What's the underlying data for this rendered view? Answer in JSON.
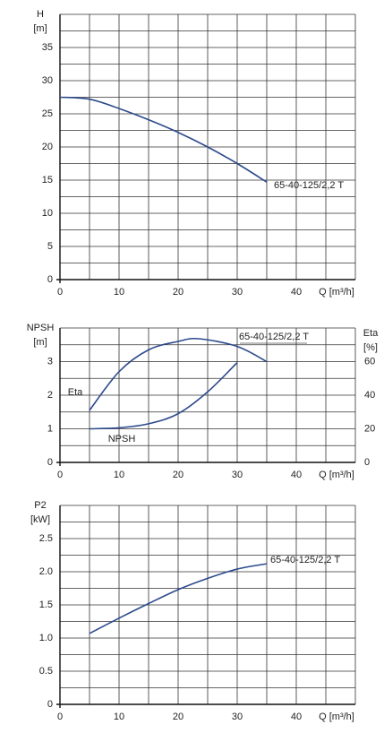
{
  "chart_data": [
    {
      "type": "line",
      "ylabel": "H",
      "yunit": "[m]",
      "xlabel": "Q [m³/h]",
      "xlim": [
        0,
        50
      ],
      "xticks": [
        0,
        10,
        20,
        30,
        40
      ],
      "ylim": [
        0,
        40
      ],
      "yticks": [
        0,
        5,
        10,
        15,
        20,
        25,
        30,
        35
      ],
      "grid": true,
      "grid_subdivisions": 2,
      "series": [
        {
          "name": "65-40-125/2,2 T",
          "color": "#2d4a8c",
          "x": [
            0,
            5,
            10,
            15,
            20,
            25,
            30,
            35
          ],
          "values": [
            27.5,
            27.2,
            25.8,
            24.1,
            22.2,
            20.0,
            17.5,
            14.7
          ]
        }
      ]
    },
    {
      "type": "line",
      "ylabel": "NPSH",
      "yunit": "[m]",
      "y2label": "Eta",
      "y2unit": "[%]",
      "xlabel": "Q [m³/h]",
      "annotation": "65-40-125/2,2 T",
      "xlim": [
        0,
        50
      ],
      "xticks": [
        0,
        10,
        20,
        30,
        40
      ],
      "ylim": [
        0,
        4
      ],
      "yticks": [
        0,
        1,
        2,
        3
      ],
      "y2lim": [
        0,
        80
      ],
      "y2ticks": [
        0,
        20,
        40,
        60
      ],
      "grid": true,
      "grid_subdivisions": 2,
      "series": [
        {
          "name": "Eta",
          "color": "#2d4a8c",
          "axis": "y2",
          "x": [
            5,
            10,
            15,
            20,
            23.5,
            30,
            35
          ],
          "values": [
            31,
            54,
            67,
            72,
            73.6,
            69,
            60
          ]
        },
        {
          "name": "NPSH",
          "color": "#2d4a8c",
          "x": [
            5,
            10,
            15,
            20,
            25,
            30
          ],
          "values": [
            1.0,
            1.03,
            1.15,
            1.45,
            2.1,
            2.97
          ]
        }
      ]
    },
    {
      "type": "line",
      "ylabel": "P2",
      "yunit": "[kW]",
      "xlabel": "Q [m³/h]",
      "xlim": [
        0,
        50
      ],
      "xticks": [
        0,
        10,
        20,
        30,
        40
      ],
      "ylim": [
        0,
        3
      ],
      "yticks": [
        0,
        {
          "value": 0.5,
          "label": "0.5"
        },
        {
          "value": 1,
          "label": "1.0"
        },
        {
          "value": 1.5,
          "label": "1.5"
        },
        {
          "value": 2,
          "label": "2.0"
        },
        {
          "value": 2.5,
          "label": "2.5"
        }
      ],
      "grid": true,
      "grid_subdivisions": 2,
      "series": [
        {
          "name": "65-40-125/2,2 T",
          "color": "#2d4a8c",
          "x": [
            5,
            10,
            15,
            20,
            25,
            30,
            35
          ],
          "values": [
            1.07,
            1.3,
            1.52,
            1.73,
            1.9,
            2.04,
            2.12
          ]
        }
      ]
    }
  ]
}
